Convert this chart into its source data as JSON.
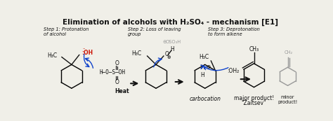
{
  "title": "Elimination of alcohols with H₂SO₄ - mechanism [E1]",
  "title_fontsize": 7.5,
  "bg_color": "#f0efe8",
  "step1_label": "Step 1: Protonation\nof alcohol",
  "step2_label": "Step 2: Loss of leaving\ngroup",
  "step3_label": "Step 3: Deprotonation\nto form alkene",
  "carbocation_label": "carbocation",
  "major_label": "major product!",
  "zaitsev_label": "\"Zaitsev\"",
  "minor_label1": "minor",
  "minor_label2": "product!",
  "heat_label": "Heat",
  "blue_arrow_color": "#1144cc",
  "red_color": "#cc1100",
  "gray_color": "#999999",
  "text_color": "#111111",
  "mol_lw": 1.0
}
